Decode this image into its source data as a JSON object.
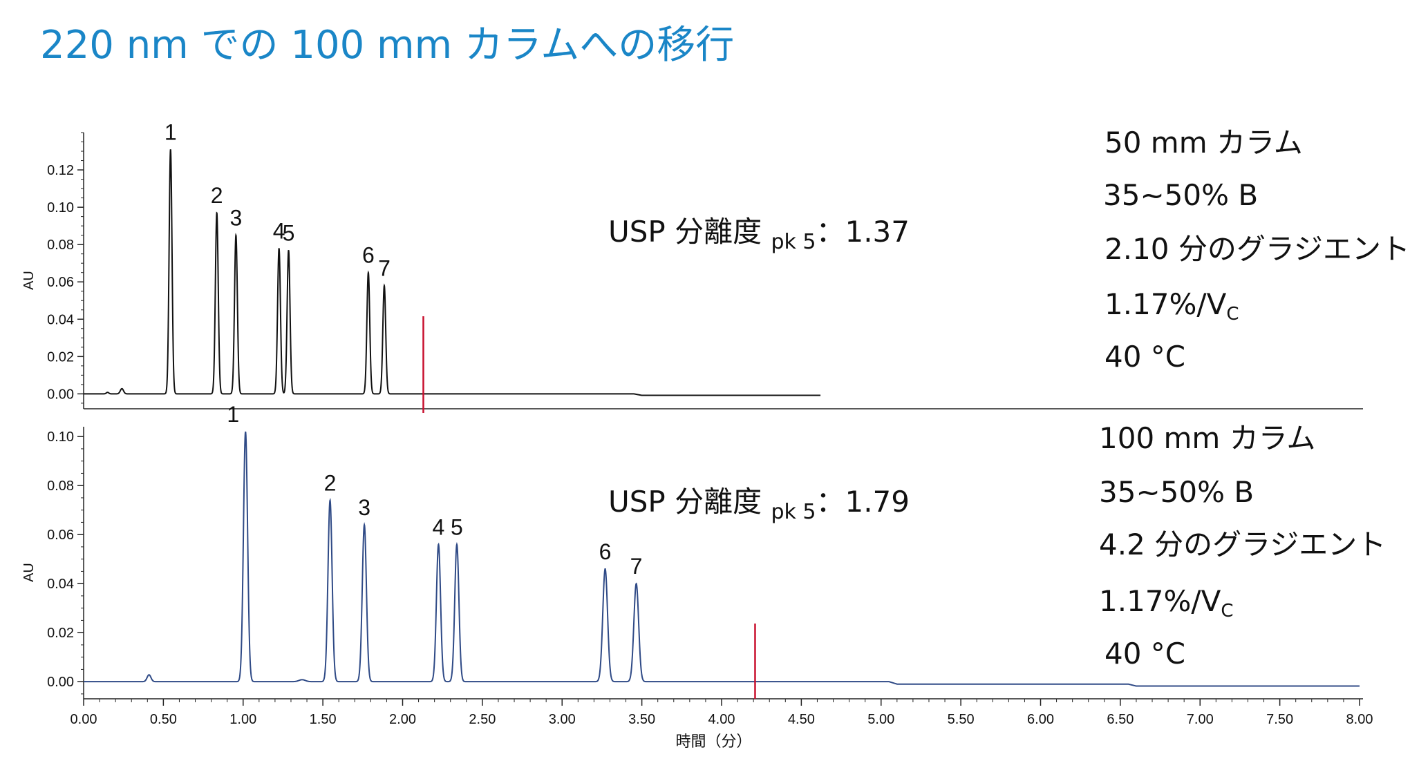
{
  "title": "220 nm での 100 mm カラムへの移行",
  "chart_data": [
    {
      "type": "line",
      "name": "50mm",
      "ylabel": "AU",
      "ylim": [
        -0.008,
        0.14
      ],
      "xlim": [
        0,
        8
      ],
      "y_ticks": [
        0.0,
        0.02,
        0.04,
        0.06,
        0.08,
        0.1,
        0.12
      ],
      "y_tick_labels": [
        "0.00",
        "0.02",
        "0.04",
        "0.06",
        "0.08",
        "0.10",
        "0.12"
      ],
      "color": "#111111",
      "marker_time": 2.13,
      "marker_color": "#c8102e",
      "trace_end": 4.62,
      "baseline_drift": [
        [
          0,
          0.0
        ],
        [
          3.45,
          0.0
        ],
        [
          3.5,
          -0.0008
        ],
        [
          4.62,
          -0.0008
        ]
      ],
      "baseline_bumps": [
        [
          0.15,
          0.0008,
          0.008
        ],
        [
          0.24,
          0.0028,
          0.01
        ]
      ],
      "peaks": [
        {
          "label": "1",
          "time": 0.545,
          "height": 0.131,
          "width": 0.009
        },
        {
          "label": "2",
          "time": 0.835,
          "height": 0.097,
          "width": 0.009
        },
        {
          "label": "3",
          "time": 0.955,
          "height": 0.085,
          "width": 0.009
        },
        {
          "label": "4",
          "time": 1.225,
          "height": 0.078,
          "width": 0.009
        },
        {
          "label": "5",
          "time": 1.285,
          "height": 0.077,
          "width": 0.009
        },
        {
          "label": "6",
          "time": 1.785,
          "height": 0.065,
          "width": 0.009
        },
        {
          "label": "7",
          "time": 1.885,
          "height": 0.058,
          "width": 0.009
        }
      ],
      "usp": {
        "prefix": "USP 分離度 ",
        "sub": "pk 5",
        "suffix": "：1.37"
      },
      "conditions": {
        "column": "50 mm カラム",
        "gradient_range": "35~50% B",
        "gradient_time": "2.10 分のグラジエント",
        "slope": "1.17%/V",
        "slope_sub": "C",
        "temperature": "40 °C"
      }
    },
    {
      "type": "line",
      "name": "100mm",
      "ylabel": "AU",
      "ylim": [
        -0.007,
        0.104
      ],
      "xlim": [
        0,
        8
      ],
      "y_ticks": [
        0.0,
        0.02,
        0.04,
        0.06,
        0.08,
        0.1
      ],
      "y_tick_labels": [
        "0.00",
        "0.02",
        "0.04",
        "0.06",
        "0.08",
        "0.10"
      ],
      "color": "#2f4a86",
      "marker_time": 4.21,
      "marker_color": "#c8102e",
      "trace_end": 8.0,
      "baseline_drift": [
        [
          0,
          0.0
        ],
        [
          5.05,
          0.0
        ],
        [
          5.1,
          -0.001
        ],
        [
          6.55,
          -0.001
        ],
        [
          6.6,
          -0.0018
        ],
        [
          8.0,
          -0.0018
        ]
      ],
      "baseline_bumps": [
        [
          0.41,
          0.0028,
          0.012
        ],
        [
          1.37,
          0.0008,
          0.02
        ]
      ],
      "peaks": [
        {
          "label": "1",
          "time": 1.015,
          "height": 0.102,
          "width": 0.013
        },
        {
          "label": "2",
          "time": 1.545,
          "height": 0.074,
          "width": 0.013
        },
        {
          "label": "3",
          "time": 1.76,
          "height": 0.064,
          "width": 0.013
        },
        {
          "label": "4",
          "time": 2.225,
          "height": 0.056,
          "width": 0.013
        },
        {
          "label": "5",
          "time": 2.34,
          "height": 0.056,
          "width": 0.013
        },
        {
          "label": "6",
          "time": 3.27,
          "height": 0.046,
          "width": 0.015
        },
        {
          "label": "7",
          "time": 3.465,
          "height": 0.04,
          "width": 0.015
        }
      ],
      "x_ticks": [
        "0.00",
        "0.50",
        "1.00",
        "1.50",
        "2.00",
        "2.50",
        "3.00",
        "3.50",
        "4.00",
        "4.50",
        "5.00",
        "5.50",
        "6.00",
        "6.50",
        "7.00",
        "7.50",
        "8.00"
      ],
      "xlabel": "時間（分）",
      "usp": {
        "prefix": "USP 分離度 ",
        "sub": "pk 5",
        "suffix": "：1.79"
      },
      "conditions": {
        "column": "100 mm カラム",
        "gradient_range": "35~50% B",
        "gradient_time": "4.2 分のグラジエント",
        "slope": "1.17%/V",
        "slope_sub": "C",
        "temperature": "40 °C"
      }
    }
  ]
}
